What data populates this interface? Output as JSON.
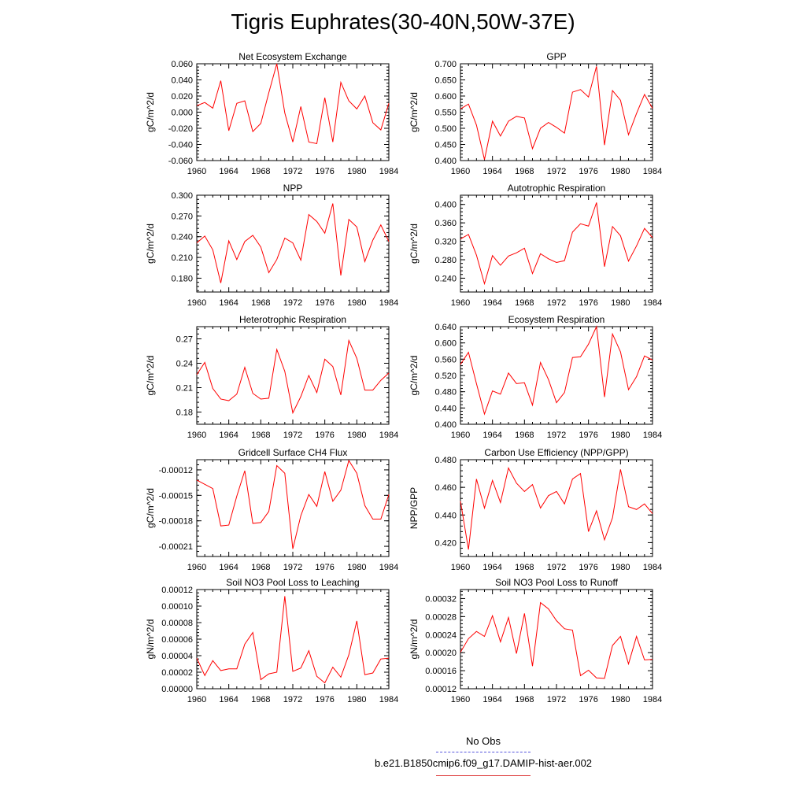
{
  "title": "Tigris Euphrates(30-40N,50W-37E)",
  "legend": {
    "placement": "bottom-center",
    "items": [
      {
        "label": "No Obs",
        "color": "#5555dd",
        "style": "dashed"
      },
      {
        "label": "b.e21.B1850cmip6.f09_g17.DAMIP-hist-aer.002",
        "color": "#dd3333",
        "style": "solid"
      }
    ]
  },
  "line_color": "#ff0000",
  "chart_data": [
    {
      "type": "line",
      "title": "Net Ecosystem Exchange",
      "ylabel": "gC/m^2/d",
      "xlim": [
        1960,
        1984
      ],
      "ylim": [
        -0.06,
        0.06
      ],
      "xticks": [
        1960,
        1964,
        1968,
        1972,
        1976,
        1980,
        1984
      ],
      "xtick_labels": [
        "1960",
        "1964",
        "1968",
        "1972",
        "1976",
        "1980",
        "1984"
      ],
      "yticks": [
        -0.06,
        -0.04,
        -0.02,
        0,
        0.02,
        0.04,
        0.06
      ],
      "ytick_labels": [
        "-0.060",
        "-0.040",
        "-0.020",
        "0.000",
        "0.020",
        "0.040",
        "0.060"
      ],
      "x": [
        1960,
        1961,
        1962,
        1963,
        1964,
        1965,
        1966,
        1967,
        1968,
        1969,
        1970,
        1971,
        1972,
        1973,
        1974,
        1975,
        1976,
        1977,
        1978,
        1979,
        1980,
        1981,
        1982,
        1983,
        1984
      ],
      "series": [
        {
          "name": "b.e21.B1850cmip6.f09_g17.DAMIP-hist-aer.002",
          "values": [
            0.008,
            0.012,
            0.005,
            0.039,
            -0.023,
            0.011,
            0.014,
            -0.024,
            -0.014,
            0.024,
            0.06,
            -0.001,
            -0.037,
            0.007,
            -0.037,
            -0.039,
            0.018,
            -0.037,
            0.037,
            0.014,
            0.004,
            0.02,
            -0.013,
            -0.022,
            0.011
          ]
        }
      ]
    },
    {
      "type": "line",
      "title": "GPP",
      "ylabel": "gC/m^2/d",
      "xlim": [
        1960,
        1984
      ],
      "ylim": [
        0.4,
        0.7
      ],
      "xticks": [
        1960,
        1964,
        1968,
        1972,
        1976,
        1980,
        1984
      ],
      "xtick_labels": [
        "1960",
        "1964",
        "1968",
        "1972",
        "1976",
        "1980",
        "1984"
      ],
      "yticks": [
        0.4,
        0.45,
        0.5,
        0.55,
        0.6,
        0.65,
        0.7
      ],
      "ytick_labels": [
        "0.400",
        "0.450",
        "0.500",
        "0.550",
        "0.600",
        "0.650",
        "0.700"
      ],
      "x": [
        1960,
        1961,
        1962,
        1963,
        1964,
        1965,
        1966,
        1967,
        1968,
        1969,
        1970,
        1971,
        1972,
        1973,
        1974,
        1975,
        1976,
        1977,
        1978,
        1979,
        1980,
        1981,
        1982,
        1983,
        1984
      ],
      "series": [
        {
          "name": "b.e21.B1850cmip6.f09_g17.DAMIP-hist-aer.002",
          "values": [
            0.56,
            0.575,
            0.51,
            0.403,
            0.522,
            0.476,
            0.522,
            0.537,
            0.532,
            0.437,
            0.5,
            0.518,
            0.503,
            0.485,
            0.612,
            0.62,
            0.597,
            0.692,
            0.448,
            0.617,
            0.587,
            0.48,
            0.546,
            0.605,
            0.562
          ]
        }
      ]
    },
    {
      "type": "line",
      "title": "NPP",
      "ylabel": "gC/m^2/d",
      "xlim": [
        1960,
        1984
      ],
      "ylim": [
        0.16,
        0.3
      ],
      "xticks": [
        1960,
        1964,
        1968,
        1972,
        1976,
        1980,
        1984
      ],
      "xtick_labels": [
        "1960",
        "1964",
        "1968",
        "1972",
        "1976",
        "1980",
        "1984"
      ],
      "yticks": [
        0.18,
        0.21,
        0.24,
        0.27,
        0.3
      ],
      "ytick_labels": [
        "0.180",
        "0.210",
        "0.240",
        "0.270",
        "0.300"
      ],
      "x": [
        1960,
        1961,
        1962,
        1963,
        1964,
        1965,
        1966,
        1967,
        1968,
        1969,
        1970,
        1971,
        1972,
        1973,
        1974,
        1975,
        1976,
        1977,
        1978,
        1979,
        1980,
        1981,
        1982,
        1983,
        1984
      ],
      "series": [
        {
          "name": "b.e21.B1850cmip6.f09_g17.DAMIP-hist-aer.002",
          "values": [
            0.231,
            0.241,
            0.221,
            0.173,
            0.234,
            0.207,
            0.233,
            0.242,
            0.225,
            0.188,
            0.207,
            0.238,
            0.231,
            0.206,
            0.272,
            0.262,
            0.245,
            0.288,
            0.184,
            0.265,
            0.254,
            0.204,
            0.235,
            0.257,
            0.233
          ]
        }
      ]
    },
    {
      "type": "line",
      "title": "Autotrophic Respiration",
      "ylabel": "gC/m^2/d",
      "xlim": [
        1960,
        1984
      ],
      "ylim": [
        0.21,
        0.42
      ],
      "xticks": [
        1960,
        1964,
        1968,
        1972,
        1976,
        1980,
        1984
      ],
      "xtick_labels": [
        "1960",
        "1964",
        "1968",
        "1972",
        "1976",
        "1980",
        "1984"
      ],
      "yticks": [
        0.24,
        0.28,
        0.32,
        0.36,
        0.4
      ],
      "ytick_labels": [
        "0.240",
        "0.280",
        "0.320",
        "0.360",
        "0.400"
      ],
      "x": [
        1960,
        1961,
        1962,
        1963,
        1964,
        1965,
        1966,
        1967,
        1968,
        1969,
        1970,
        1971,
        1972,
        1973,
        1974,
        1975,
        1976,
        1977,
        1978,
        1979,
        1980,
        1981,
        1982,
        1983,
        1984
      ],
      "series": [
        {
          "name": "b.e21.B1850cmip6.f09_g17.DAMIP-hist-aer.002",
          "values": [
            0.325,
            0.335,
            0.29,
            0.228,
            0.289,
            0.268,
            0.288,
            0.295,
            0.305,
            0.25,
            0.293,
            0.282,
            0.274,
            0.278,
            0.34,
            0.358,
            0.353,
            0.404,
            0.265,
            0.352,
            0.332,
            0.277,
            0.31,
            0.348,
            0.328
          ]
        }
      ]
    },
    {
      "type": "line",
      "title": "Heterotrophic Respiration",
      "ylabel": "gC/m^2/d",
      "xlim": [
        1960,
        1984
      ],
      "ylim": [
        0.165,
        0.285
      ],
      "xticks": [
        1960,
        1964,
        1968,
        1972,
        1976,
        1980,
        1984
      ],
      "xtick_labels": [
        "1960",
        "1964",
        "1968",
        "1972",
        "1976",
        "1980",
        "1984"
      ],
      "yticks": [
        0.18,
        0.21,
        0.24,
        0.27
      ],
      "ytick_labels": [
        "0.18",
        "0.21",
        "0.24",
        "0.27"
      ],
      "x": [
        1960,
        1961,
        1962,
        1963,
        1964,
        1965,
        1966,
        1967,
        1968,
        1969,
        1970,
        1971,
        1972,
        1973,
        1974,
        1975,
        1976,
        1977,
        1978,
        1979,
        1980,
        1981,
        1982,
        1983,
        1984
      ],
      "series": [
        {
          "name": "b.e21.B1850cmip6.f09_g17.DAMIP-hist-aer.002",
          "values": [
            0.226,
            0.241,
            0.209,
            0.196,
            0.194,
            0.202,
            0.235,
            0.203,
            0.196,
            0.197,
            0.257,
            0.23,
            0.179,
            0.199,
            0.225,
            0.204,
            0.245,
            0.236,
            0.201,
            0.268,
            0.246,
            0.207,
            0.207,
            0.219,
            0.228
          ]
        }
      ]
    },
    {
      "type": "line",
      "title": "Ecosystem Respiration",
      "ylabel": "gC/m^2/d",
      "xlim": [
        1960,
        1984
      ],
      "ylim": [
        0.4,
        0.64
      ],
      "xticks": [
        1960,
        1964,
        1968,
        1972,
        1976,
        1980,
        1984
      ],
      "xtick_labels": [
        "1960",
        "1964",
        "1968",
        "1972",
        "1976",
        "1980",
        "1984"
      ],
      "yticks": [
        0.4,
        0.44,
        0.48,
        0.52,
        0.56,
        0.6,
        0.64
      ],
      "ytick_labels": [
        "0.400",
        "0.440",
        "0.480",
        "0.520",
        "0.560",
        "0.600",
        "0.640"
      ],
      "x": [
        1960,
        1961,
        1962,
        1963,
        1964,
        1965,
        1966,
        1967,
        1968,
        1969,
        1970,
        1971,
        1972,
        1973,
        1974,
        1975,
        1976,
        1977,
        1978,
        1979,
        1980,
        1981,
        1982,
        1983,
        1984
      ],
      "series": [
        {
          "name": "b.e21.B1850cmip6.f09_g17.DAMIP-hist-aer.002",
          "values": [
            0.547,
            0.577,
            0.5,
            0.425,
            0.482,
            0.474,
            0.526,
            0.5,
            0.502,
            0.447,
            0.552,
            0.51,
            0.453,
            0.478,
            0.564,
            0.566,
            0.597,
            0.64,
            0.467,
            0.622,
            0.578,
            0.485,
            0.517,
            0.568,
            0.558
          ]
        }
      ]
    },
    {
      "type": "line",
      "title": "Gridcell Surface CH4 Flux",
      "ylabel": "gC/m^2/d",
      "xlim": [
        1960,
        1984
      ],
      "ylim": [
        -0.000222,
        -0.000108
      ],
      "xticks": [
        1960,
        1964,
        1968,
        1972,
        1976,
        1980,
        1984
      ],
      "xtick_labels": [
        "1960",
        "1964",
        "1968",
        "1972",
        "1976",
        "1980",
        "1984"
      ],
      "yticks": [
        -0.00021,
        -0.00018,
        -0.00015,
        -0.00012
      ],
      "ytick_labels": [
        "-0.00021",
        "-0.00018",
        "-0.00015",
        "-0.00012"
      ],
      "x": [
        1960,
        1961,
        1962,
        1963,
        1964,
        1965,
        1966,
        1967,
        1968,
        1969,
        1970,
        1971,
        1972,
        1973,
        1974,
        1975,
        1976,
        1977,
        1978,
        1979,
        1980,
        1981,
        1982,
        1983,
        1984
      ],
      "series": [
        {
          "name": "b.e21.B1850cmip6.f09_g17.DAMIP-hist-aer.002",
          "values": [
            -0.000132,
            -0.000137,
            -0.000142,
            -0.000186,
            -0.000185,
            -0.000151,
            -0.000121,
            -0.000183,
            -0.000182,
            -0.000169,
            -0.000115,
            -0.000124,
            -0.000213,
            -0.000174,
            -0.000149,
            -0.000163,
            -0.000122,
            -0.000157,
            -0.000144,
            -0.000109,
            -0.000124,
            -0.000162,
            -0.000178,
            -0.000178,
            -0.000149
          ]
        }
      ]
    },
    {
      "type": "line",
      "title": "Carbon Use Efficiency (NPP/GPP)",
      "ylabel": "NPP/GPP",
      "xlim": [
        1960,
        1984
      ],
      "ylim": [
        0.41,
        0.48
      ],
      "xticks": [
        1960,
        1964,
        1968,
        1972,
        1976,
        1980,
        1984
      ],
      "xtick_labels": [
        "1960",
        "1964",
        "1968",
        "1972",
        "1976",
        "1980",
        "1984"
      ],
      "yticks": [
        0.42,
        0.44,
        0.46,
        0.48
      ],
      "ytick_labels": [
        "0.420",
        "0.440",
        "0.460",
        "0.480"
      ],
      "x": [
        1960,
        1961,
        1962,
        1963,
        1964,
        1965,
        1966,
        1967,
        1968,
        1969,
        1970,
        1971,
        1972,
        1973,
        1974,
        1975,
        1976,
        1977,
        1978,
        1979,
        1980,
        1981,
        1982,
        1983,
        1984
      ],
      "series": [
        {
          "name": "b.e21.B1850cmip6.f09_g17.DAMIP-hist-aer.002",
          "values": [
            0.45,
            0.415,
            0.466,
            0.445,
            0.465,
            0.449,
            0.474,
            0.463,
            0.457,
            0.462,
            0.445,
            0.454,
            0.457,
            0.448,
            0.466,
            0.47,
            0.428,
            0.443,
            0.422,
            0.438,
            0.473,
            0.446,
            0.444,
            0.448,
            0.441
          ]
        }
      ]
    },
    {
      "type": "line",
      "title": "Soil NO3 Pool Loss to Leaching",
      "ylabel": "gN/m^2/d",
      "xlim": [
        1960,
        1984
      ],
      "ylim": [
        0,
        0.00012
      ],
      "xticks": [
        1960,
        1964,
        1968,
        1972,
        1976,
        1980,
        1984
      ],
      "xtick_labels": [
        "1960",
        "1964",
        "1968",
        "1972",
        "1976",
        "1980",
        "1984"
      ],
      "yticks": [
        0,
        2e-05,
        4e-05,
        6e-05,
        8e-05,
        0.0001,
        0.00012
      ],
      "ytick_labels": [
        "0.00000",
        "0.00002",
        "0.00004",
        "0.00006",
        "0.00008",
        "0.00010",
        "0.00012"
      ],
      "x": [
        1960,
        1961,
        1962,
        1963,
        1964,
        1965,
        1966,
        1967,
        1968,
        1969,
        1970,
        1971,
        1972,
        1973,
        1974,
        1975,
        1976,
        1977,
        1978,
        1979,
        1980,
        1981,
        1982,
        1983,
        1984
      ],
      "series": [
        {
          "name": "b.e21.B1850cmip6.f09_g17.DAMIP-hist-aer.002",
          "values": [
            3.7e-05,
            1.6e-05,
            3.4e-05,
            2.2e-05,
            2.4e-05,
            2.4e-05,
            5.4e-05,
            6.8e-05,
            1.1e-05,
            1.8e-05,
            2e-05,
            0.000112,
            2.1e-05,
            2.5e-05,
            4.6e-05,
            1.5e-05,
            7e-06,
            2.6e-05,
            1.4e-05,
            4.1e-05,
            8.2e-05,
            1.7e-05,
            1.9e-05,
            3.6e-05,
            3.7e-05
          ]
        }
      ]
    },
    {
      "type": "line",
      "title": "Soil NO3 Pool Loss to Runoff",
      "ylabel": "gN/m^2/d",
      "xlim": [
        1960,
        1984
      ],
      "ylim": [
        0.00012,
        0.00034
      ],
      "xticks": [
        1960,
        1964,
        1968,
        1972,
        1976,
        1980,
        1984
      ],
      "xtick_labels": [
        "1960",
        "1964",
        "1968",
        "1972",
        "1976",
        "1980",
        "1984"
      ],
      "yticks": [
        0.00012,
        0.00016,
        0.0002,
        0.00024,
        0.00028,
        0.00032
      ],
      "ytick_labels": [
        "0.00012",
        "0.00016",
        "0.00020",
        "0.00024",
        "0.00028",
        "0.00032"
      ],
      "x": [
        1960,
        1961,
        1962,
        1963,
        1964,
        1965,
        1966,
        1967,
        1968,
        1969,
        1970,
        1971,
        1972,
        1973,
        1974,
        1975,
        1976,
        1977,
        1978,
        1979,
        1980,
        1981,
        1982,
        1983,
        1984
      ],
      "series": [
        {
          "name": "b.e21.B1850cmip6.f09_g17.DAMIP-hist-aer.002",
          "values": [
            0.000201,
            0.000231,
            0.000247,
            0.000236,
            0.000282,
            0.000224,
            0.000278,
            0.000198,
            0.000287,
            0.00017,
            0.000311,
            0.000297,
            0.000271,
            0.000253,
            0.00025,
            0.000149,
            0.000161,
            0.000144,
            0.000143,
            0.000216,
            0.000236,
            0.000175,
            0.000236,
            0.000184,
            0.000185
          ]
        }
      ]
    }
  ]
}
